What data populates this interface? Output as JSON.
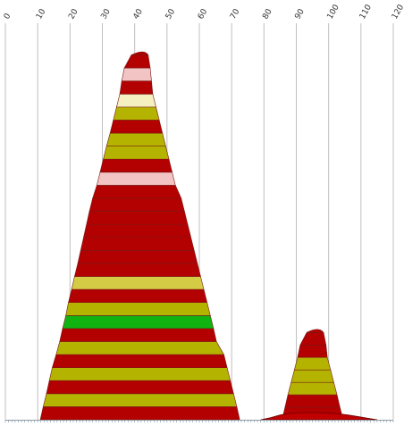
{
  "chart_data": {
    "type": "area",
    "title": "",
    "xlabel": "",
    "ylabel": "",
    "xlim": [
      0,
      120
    ],
    "x_ticks": [
      0,
      10,
      20,
      30,
      40,
      50,
      60,
      70,
      80,
      90,
      100,
      110,
      120
    ],
    "grid": true,
    "legend": "none",
    "colors": {
      "dark_red": "#b30000",
      "olive": "#b3b300",
      "pale_yellow": "#f5f0c0",
      "pink": "#f2c4c4",
      "khaki": "#d4cc44",
      "green": "#11b311",
      "ridge_fill": "#c00000",
      "ridge_stroke": "#6b0000"
    },
    "stacks": [
      {
        "peak_x": 43,
        "y_top": 0.92,
        "bands": [
          {
            "left": 10.8,
            "right": 72.5,
            "color": "dark_red"
          },
          {
            "left": 11.7,
            "right": 71.6,
            "color": "olive"
          },
          {
            "left": 12.7,
            "right": 70.6,
            "color": "dark_red"
          },
          {
            "left": 13.6,
            "right": 69.6,
            "color": "olive"
          },
          {
            "left": 14.5,
            "right": 68.6,
            "color": "dark_red"
          },
          {
            "left": 15.7,
            "right": 67.6,
            "color": "olive"
          },
          {
            "left": 16.8,
            "right": 65.3,
            "color": "dark_red"
          },
          {
            "left": 17.7,
            "right": 64.4,
            "color": "green"
          },
          {
            "left": 18.7,
            "right": 63.4,
            "color": "olive"
          },
          {
            "left": 19.5,
            "right": 62.4,
            "color": "dark_red"
          },
          {
            "left": 20.5,
            "right": 61.4,
            "color": "khaki"
          },
          {
            "left": 21.4,
            "right": 60.4,
            "color": "dark_red"
          },
          {
            "left": 22.4,
            "right": 59.4,
            "color": "dark_red"
          },
          {
            "left": 23.3,
            "right": 58.4,
            "color": "dark_red"
          },
          {
            "left": 24.2,
            "right": 57.4,
            "color": "dark_red"
          },
          {
            "left": 25.1,
            "right": 56.4,
            "color": "dark_red"
          },
          {
            "left": 26.0,
            "right": 55.4,
            "color": "dark_red"
          },
          {
            "left": 27.0,
            "right": 54.4,
            "color": "dark_red"
          },
          {
            "left": 28.3,
            "right": 52.6,
            "color": "pink"
          },
          {
            "left": 29.3,
            "right": 51.6,
            "color": "dark_red"
          },
          {
            "left": 30.3,
            "right": 50.6,
            "color": "olive"
          },
          {
            "left": 31.3,
            "right": 49.6,
            "color": "olive"
          },
          {
            "left": 32.4,
            "right": 48.6,
            "color": "dark_red"
          },
          {
            "left": 33.4,
            "right": 47.6,
            "color": "olive"
          },
          {
            "left": 34.4,
            "right": 46.6,
            "color": "pale_yellow"
          },
          {
            "left": 35.4,
            "right": 45.6,
            "color": "dark_red"
          },
          {
            "left": 36.0,
            "right": 45.2,
            "color": "pink"
          },
          {
            "left": 36.8,
            "right": 44.8,
            "color": "dark_red"
          }
        ]
      },
      {
        "peak_x": 97,
        "y_top": 0.22,
        "bands": [
          {
            "left": 85.6,
            "right": 104.5,
            "color": "dark_red"
          },
          {
            "left": 86.5,
            "right": 103.5,
            "color": "dark_red"
          },
          {
            "left": 87.4,
            "right": 102.6,
            "color": "olive"
          },
          {
            "left": 88.4,
            "right": 101.6,
            "color": "olive"
          },
          {
            "left": 89.4,
            "right": 100.6,
            "color": "olive"
          },
          {
            "left": 90.4,
            "right": 99.6,
            "color": "dark_red"
          },
          {
            "left": 91.2,
            "right": 99.2,
            "color": "dark_red"
          }
        ]
      }
    ],
    "ridges": [
      {
        "color": "ridge_fill",
        "points": [
          [
            79,
            0.0
          ],
          [
            82,
            0.005
          ],
          [
            85,
            0.012
          ],
          [
            88,
            0.016
          ],
          [
            91,
            0.018
          ],
          [
            94,
            0.018
          ],
          [
            97,
            0.018
          ],
          [
            100,
            0.017
          ],
          [
            103,
            0.015
          ],
          [
            106,
            0.012
          ],
          [
            109,
            0.008
          ],
          [
            112,
            0.004
          ],
          [
            115,
            0.0
          ]
        ]
      }
    ],
    "minor_ticks": true
  }
}
